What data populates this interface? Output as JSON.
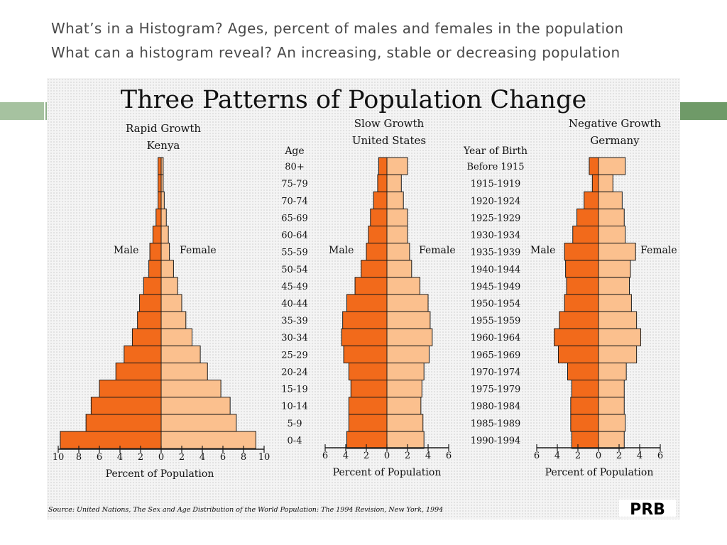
{
  "slide": {
    "heading_line1": "What’s in a Histogram? Ages, percent of males and females in the population",
    "heading_line2": "What can a histogram reveal?  An increasing, stable or decreasing population"
  },
  "figure": {
    "title": "Three Patterns of Population Change",
    "source": "Source: United Nations, The Sex and Age Distribution of the World Population: The 1994 Revision, New York, 1994",
    "logo": "PRB",
    "age_header": "Age",
    "birth_header": "Year of Birth",
    "colors": {
      "male": "#f26a1b",
      "female": "#fbc08e",
      "outline": "#1a1a1a"
    }
  },
  "chart_data": [
    {
      "type": "bar",
      "orientation": "horizontal-population-pyramid",
      "title": "Rapid Growth",
      "subtitle": "Kenya",
      "categories": [
        "0-4",
        "5-9",
        "10-14",
        "15-19",
        "20-24",
        "25-29",
        "30-34",
        "35-39",
        "40-44",
        "45-49",
        "50-54",
        "55-59",
        "60-64",
        "65-69",
        "70-74",
        "75-79",
        "80+"
      ],
      "series": [
        {
          "name": "Male",
          "values": [
            9.8,
            7.3,
            6.8,
            6.0,
            4.4,
            3.6,
            2.8,
            2.3,
            2.1,
            1.7,
            1.2,
            1.1,
            0.8,
            0.5,
            0.3,
            0.3,
            0.3
          ]
        },
        {
          "name": "Female",
          "values": [
            9.2,
            7.3,
            6.7,
            5.8,
            4.5,
            3.8,
            3.0,
            2.4,
            2.0,
            1.6,
            1.2,
            0.8,
            0.7,
            0.5,
            0.3,
            0.2,
            0.2
          ]
        }
      ],
      "xlabel": "Percent of Population",
      "xticks": [
        "10",
        "8",
        "6",
        "4",
        "2",
        "0",
        "2",
        "4",
        "6",
        "8",
        "10"
      ],
      "xlim": [
        -10,
        10
      ],
      "left_label": "Male",
      "right_label": "Female"
    },
    {
      "type": "bar",
      "orientation": "horizontal-population-pyramid",
      "title": "Slow Growth",
      "subtitle": "United States",
      "categories": [
        "0-4",
        "5-9",
        "10-14",
        "15-19",
        "20-24",
        "25-29",
        "30-34",
        "35-39",
        "40-44",
        "45-49",
        "50-54",
        "55-59",
        "60-64",
        "65-69",
        "70-74",
        "75-79",
        "80+"
      ],
      "series": [
        {
          "name": "Male",
          "values": [
            3.9,
            3.7,
            3.7,
            3.5,
            3.7,
            4.2,
            4.4,
            4.3,
            3.9,
            3.1,
            2.5,
            2.0,
            1.8,
            1.6,
            1.3,
            0.9,
            0.8
          ]
        },
        {
          "name": "Female",
          "values": [
            3.6,
            3.5,
            3.3,
            3.4,
            3.6,
            4.1,
            4.4,
            4.2,
            4.0,
            3.2,
            2.4,
            2.2,
            2.0,
            2.0,
            1.6,
            1.4,
            2.0
          ]
        }
      ],
      "xlabel": "Percent of Population",
      "xticks": [
        "6",
        "4",
        "2",
        "0",
        "2",
        "4",
        "6"
      ],
      "xlim": [
        -6,
        6
      ],
      "left_label": "Male",
      "right_label": "Female"
    },
    {
      "type": "bar",
      "orientation": "horizontal-population-pyramid",
      "title": "Negative Growth",
      "subtitle": "Germany",
      "categories": [
        "0-4",
        "5-9",
        "10-14",
        "15-19",
        "20-24",
        "25-29",
        "30-34",
        "35-39",
        "40-44",
        "45-49",
        "50-54",
        "55-59",
        "60-64",
        "65-69",
        "70-74",
        "75-79",
        "80+"
      ],
      "series": [
        {
          "name": "Male",
          "values": [
            2.6,
            2.7,
            2.7,
            2.6,
            3.0,
            3.9,
            4.3,
            3.8,
            3.3,
            3.1,
            3.2,
            3.3,
            2.5,
            2.1,
            1.4,
            0.6,
            0.9
          ]
        },
        {
          "name": "Female",
          "values": [
            2.5,
            2.6,
            2.5,
            2.5,
            2.7,
            3.7,
            4.1,
            3.7,
            3.2,
            3.0,
            3.1,
            3.6,
            2.6,
            2.5,
            2.3,
            1.4,
            2.6
          ]
        }
      ],
      "xlabel": "Percent of Population",
      "xticks": [
        "6",
        "4",
        "2",
        "0",
        "2",
        "4",
        "6"
      ],
      "xlim": [
        -6,
        6
      ],
      "left_label": "Male",
      "right_label": "Female"
    }
  ],
  "birth_years": [
    "1990-1994",
    "1985-1989",
    "1980-1984",
    "1975-1979",
    "1970-1974",
    "1965-1969",
    "1960-1964",
    "1955-1959",
    "1950-1954",
    "1945-1949",
    "1940-1944",
    "1935-1939",
    "1930-1934",
    "1925-1929",
    "1920-1924",
    "1915-1919",
    "Before 1915"
  ]
}
